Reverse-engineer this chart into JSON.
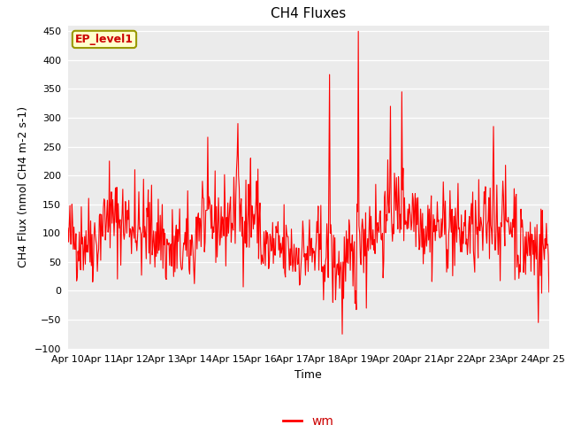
{
  "title": "CH4 Fluxes",
  "xlabel": "Time",
  "ylabel": "CH4 Flux (nmol CH4 m-2 s-1)",
  "ylim": [
    -100,
    460
  ],
  "yticks": [
    -100,
    -50,
    0,
    50,
    100,
    150,
    200,
    250,
    300,
    350,
    400,
    450
  ],
  "x_labels": [
    "Apr 10",
    "Apr 11",
    "Apr 12",
    "Apr 13",
    "Apr 14",
    "Apr 15",
    "Apr 16",
    "Apr 17",
    "Apr 18",
    "Apr 19",
    "Apr 20",
    "Apr 21",
    "Apr 22",
    "Apr 23",
    "Apr 24",
    "Apr 25"
  ],
  "line_color": "red",
  "line_width": 0.8,
  "legend_label": "wm",
  "legend_label_color": "#cc0000",
  "inset_label": "EP_level1",
  "inset_bg": "#ffffcc",
  "inset_border": "#999900",
  "plot_bg": "#ebebeb",
  "title_fontsize": 11,
  "axis_label_fontsize": 9,
  "tick_fontsize": 8,
  "legend_fontsize": 10
}
